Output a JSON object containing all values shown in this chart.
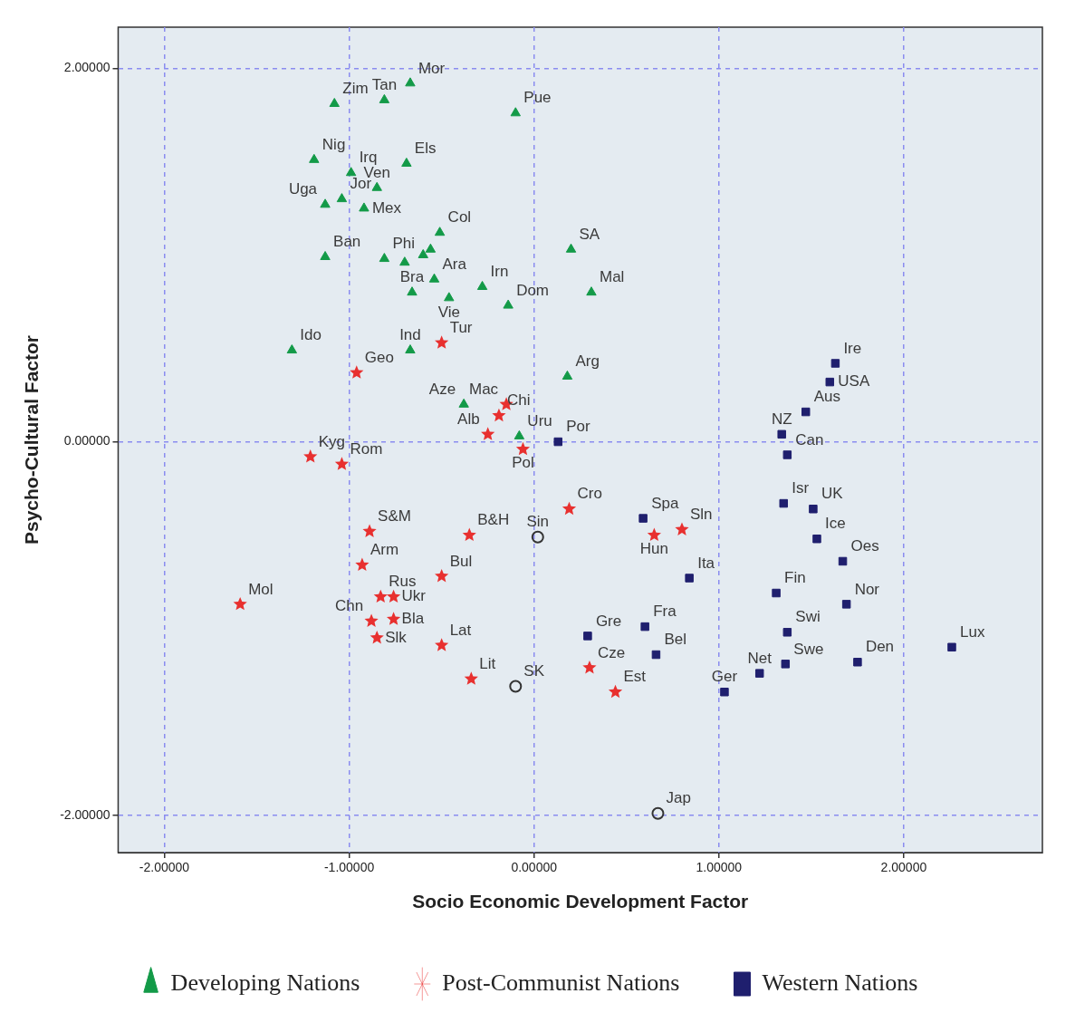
{
  "chart_data": {
    "type": "scatter",
    "xlabel": "Socio Economic Development Factor",
    "ylabel": "Psycho-Cultural Factor",
    "xlim": [
      -2.25,
      2.75
    ],
    "ylim": [
      -2.2,
      2.22
    ],
    "xticks": [
      {
        "value": -2,
        "label": "-2.00000"
      },
      {
        "value": -1,
        "label": "-1.00000"
      },
      {
        "value": 0,
        "label": "0.00000"
      },
      {
        "value": 1,
        "label": "1.00000"
      },
      {
        "value": 2,
        "label": "2.00000"
      }
    ],
    "yticks": [
      {
        "value": -2,
        "label": "-2.00000"
      },
      {
        "value": 0,
        "label": "0.00000"
      },
      {
        "value": 2,
        "label": "2.00000"
      }
    ],
    "grid": true,
    "legend": "bottom",
    "line_style": "dashed",
    "series": [
      {
        "name": "Developing Nations",
        "color": "#139a48",
        "marker": "triangle",
        "x": [
          -1.08,
          -0.67,
          -0.81,
          -0.1,
          -1.19,
          -0.99,
          -0.69,
          -0.85,
          -1.13,
          -1.04,
          -0.92,
          -0.51,
          -0.56,
          -0.6,
          -0.81,
          -0.7,
          -1.13,
          0.2,
          -0.54,
          -0.28,
          -0.66,
          -0.46,
          -0.14,
          0.31,
          -1.31,
          -0.67,
          0.18,
          -0.38,
          -0.08
        ],
        "values": [
          1.81,
          1.92,
          1.83,
          1.76,
          1.51,
          1.44,
          1.49,
          1.36,
          1.27,
          1.3,
          1.25,
          1.12,
          1.03,
          1.0,
          0.98,
          0.96,
          0.99,
          1.03,
          0.87,
          0.83,
          0.8,
          0.77,
          0.73,
          0.8,
          0.49,
          0.49,
          0.35,
          0.2,
          0.03
        ]
      },
      {
        "name": "Post-Communist Nations",
        "color": "#e8302f",
        "marker": "star",
        "x": [
          -0.5,
          -0.96,
          -0.15,
          -0.19,
          -0.25,
          -0.06,
          -1.21,
          -1.04,
          0.19,
          -0.89,
          -0.35,
          0.65,
          0.8,
          -0.93,
          -0.5,
          -0.83,
          -0.76,
          -1.59,
          -0.88,
          -0.76,
          -0.85,
          -0.5,
          -0.34,
          0.3,
          0.44
        ],
        "values": [
          0.53,
          0.37,
          0.2,
          0.14,
          0.04,
          -0.04,
          -0.08,
          -0.12,
          -0.36,
          -0.48,
          -0.5,
          -0.5,
          -0.47,
          -0.66,
          -0.72,
          -0.83,
          -0.83,
          -0.87,
          -0.96,
          -0.95,
          -1.05,
          -1.09,
          -1.27,
          -1.21,
          -1.34
        ]
      },
      {
        "name": "Western Nations",
        "color": "#1f1f6e",
        "marker": "square",
        "x": [
          1.63,
          1.6,
          1.47,
          1.34,
          1.37,
          1.35,
          1.51,
          1.53,
          1.67,
          1.69,
          1.31,
          1.37,
          1.36,
          1.22,
          1.03,
          1.75,
          2.26,
          0.13,
          0.59,
          0.84,
          0.6,
          0.66,
          0.29
        ],
        "values": [
          0.42,
          0.32,
          0.16,
          0.04,
          -0.07,
          -0.33,
          -0.36,
          -0.52,
          -0.64,
          -0.87,
          -0.81,
          -1.02,
          -1.19,
          -1.24,
          -1.34,
          -1.18,
          -1.1,
          0.0,
          -0.41,
          -0.73,
          -0.99,
          -1.14,
          -1.04
        ]
      },
      {
        "color": "#333333",
        "marker": "circle",
        "x": [
          0.02,
          -0.1,
          0.67
        ],
        "values": [
          -0.51,
          -1.31,
          -1.99
        ]
      }
    ],
    "annotations": [
      {
        "text": "Zim",
        "x": -1.08,
        "y": 1.81
      },
      {
        "text": "Tan",
        "x": -0.81,
        "y": 1.83
      },
      {
        "text": "Mor",
        "x": -0.67,
        "y": 1.92
      },
      {
        "text": "Pue",
        "x": -0.1,
        "y": 1.76
      },
      {
        "text": "Nig",
        "x": -1.19,
        "y": 1.51
      },
      {
        "text": "Irq",
        "x": -0.99,
        "y": 1.44
      },
      {
        "text": "Els",
        "x": -0.69,
        "y": 1.49
      },
      {
        "text": "Ven",
        "x": -0.85,
        "y": 1.36
      },
      {
        "text": "Col",
        "x": -0.51,
        "y": 1.12
      },
      {
        "text": "Uga",
        "x": -1.13,
        "y": 1.27
      },
      {
        "text": "Jor",
        "x": -1.04,
        "y": 1.3
      },
      {
        "text": "Mex",
        "x": -0.92,
        "y": 1.25
      },
      {
        "text": "SA",
        "x": 0.2,
        "y": 1.03
      },
      {
        "text": "Irn",
        "x": -0.28,
        "y": 0.83
      },
      {
        "text": "Mal",
        "x": 0.31,
        "y": 0.8
      },
      {
        "text": "Ban",
        "x": -1.13,
        "y": 0.99
      },
      {
        "text": "Phi",
        "x": -0.81,
        "y": 0.98
      },
      {
        "text": "Bra",
        "x": -0.66,
        "y": 0.8
      },
      {
        "text": "Ara",
        "x": -0.54,
        "y": 0.87
      },
      {
        "text": "Dom",
        "x": -0.14,
        "y": 0.73
      },
      {
        "text": "Vie",
        "x": -0.46,
        "y": 0.77
      },
      {
        "text": "Tur",
        "x": -0.5,
        "y": 0.53
      },
      {
        "text": "Ido",
        "x": -1.31,
        "y": 0.49
      },
      {
        "text": "Ind",
        "x": -0.67,
        "y": 0.49
      },
      {
        "text": "Arg",
        "x": 0.18,
        "y": 0.35
      },
      {
        "text": "Ire",
        "x": 1.63,
        "y": 0.42
      },
      {
        "text": "USA",
        "x": 1.6,
        "y": 0.32
      },
      {
        "text": "Chi",
        "x": -0.19,
        "y": 0.14
      },
      {
        "text": "Mac",
        "x": -0.15,
        "y": 0.2
      },
      {
        "text": "Geo",
        "x": -0.96,
        "y": 0.37
      },
      {
        "text": "Aus",
        "x": 1.47,
        "y": 0.16
      },
      {
        "text": "Aze",
        "x": -0.38,
        "y": 0.2
      },
      {
        "text": "Uru",
        "x": -0.08,
        "y": 0.03
      },
      {
        "text": "NZ",
        "x": 1.34,
        "y": 0.04
      },
      {
        "text": "Kyg",
        "x": -1.21,
        "y": -0.08
      },
      {
        "text": "Rom",
        "x": -1.04,
        "y": -0.12
      },
      {
        "text": "Alb",
        "x": -0.25,
        "y": 0.04
      },
      {
        "text": "Por",
        "x": 0.13,
        "y": 0.0
      },
      {
        "text": "Can",
        "x": 1.37,
        "y": -0.07
      },
      {
        "text": "Pol",
        "x": -0.06,
        "y": -0.04
      },
      {
        "text": "Isr",
        "x": 1.35,
        "y": -0.33
      },
      {
        "text": "Cro",
        "x": 0.19,
        "y": -0.36
      },
      {
        "text": "Spa",
        "x": 0.59,
        "y": -0.41
      },
      {
        "text": "S&M",
        "x": -0.89,
        "y": -0.48
      },
      {
        "text": "B&H",
        "x": -0.35,
        "y": -0.5
      },
      {
        "text": "UK",
        "x": 1.51,
        "y": -0.36
      },
      {
        "text": "Oes",
        "x": 1.67,
        "y": -0.64
      },
      {
        "text": "Arm",
        "x": -0.93,
        "y": -0.66
      },
      {
        "text": "Sin",
        "x": 0.02,
        "y": -0.51
      },
      {
        "text": "Hun",
        "x": 0.65,
        "y": -0.5
      },
      {
        "text": "Sln",
        "x": 0.8,
        "y": -0.47
      },
      {
        "text": "Bul",
        "x": -0.5,
        "y": -0.72
      },
      {
        "text": "Ice",
        "x": 1.53,
        "y": -0.52
      },
      {
        "text": "Rus",
        "x": -0.83,
        "y": -0.83
      },
      {
        "text": "Fin",
        "x": 1.31,
        "y": -0.81
      },
      {
        "text": "Nor",
        "x": 1.69,
        "y": -0.87
      },
      {
        "text": "Mol",
        "x": -1.59,
        "y": -0.87
      },
      {
        "text": "Ita",
        "x": 0.84,
        "y": -0.73
      },
      {
        "text": "Ukr",
        "x": -0.76,
        "y": -0.83
      },
      {
        "text": "Gre",
        "x": 0.29,
        "y": -1.04
      },
      {
        "text": "Swi",
        "x": 1.37,
        "y": -1.02
      },
      {
        "text": "Fra",
        "x": 0.6,
        "y": -0.99
      },
      {
        "text": "Chn",
        "x": -0.88,
        "y": -0.96
      },
      {
        "text": "Lat",
        "x": -0.5,
        "y": -1.09
      },
      {
        "text": "Lux",
        "x": 2.26,
        "y": -1.1
      },
      {
        "text": "Swe",
        "x": 1.36,
        "y": -1.19
      },
      {
        "text": "Den",
        "x": 1.75,
        "y": -1.18
      },
      {
        "text": "Bla",
        "x": -0.76,
        "y": -0.95
      },
      {
        "text": "Cze",
        "x": 0.3,
        "y": -1.21
      },
      {
        "text": "Bel",
        "x": 0.66,
        "y": -1.14
      },
      {
        "text": "Slk",
        "x": -0.85,
        "y": -1.05
      },
      {
        "text": "Lit",
        "x": -0.34,
        "y": -1.27
      },
      {
        "text": "SK",
        "x": -0.1,
        "y": -1.31
      },
      {
        "text": "Net",
        "x": 1.22,
        "y": -1.24
      },
      {
        "text": "Est",
        "x": 0.44,
        "y": -1.34
      },
      {
        "text": "Ger",
        "x": 1.03,
        "y": -1.34
      },
      {
        "text": "Jap",
        "x": 0.67,
        "y": -1.99
      }
    ]
  }
}
